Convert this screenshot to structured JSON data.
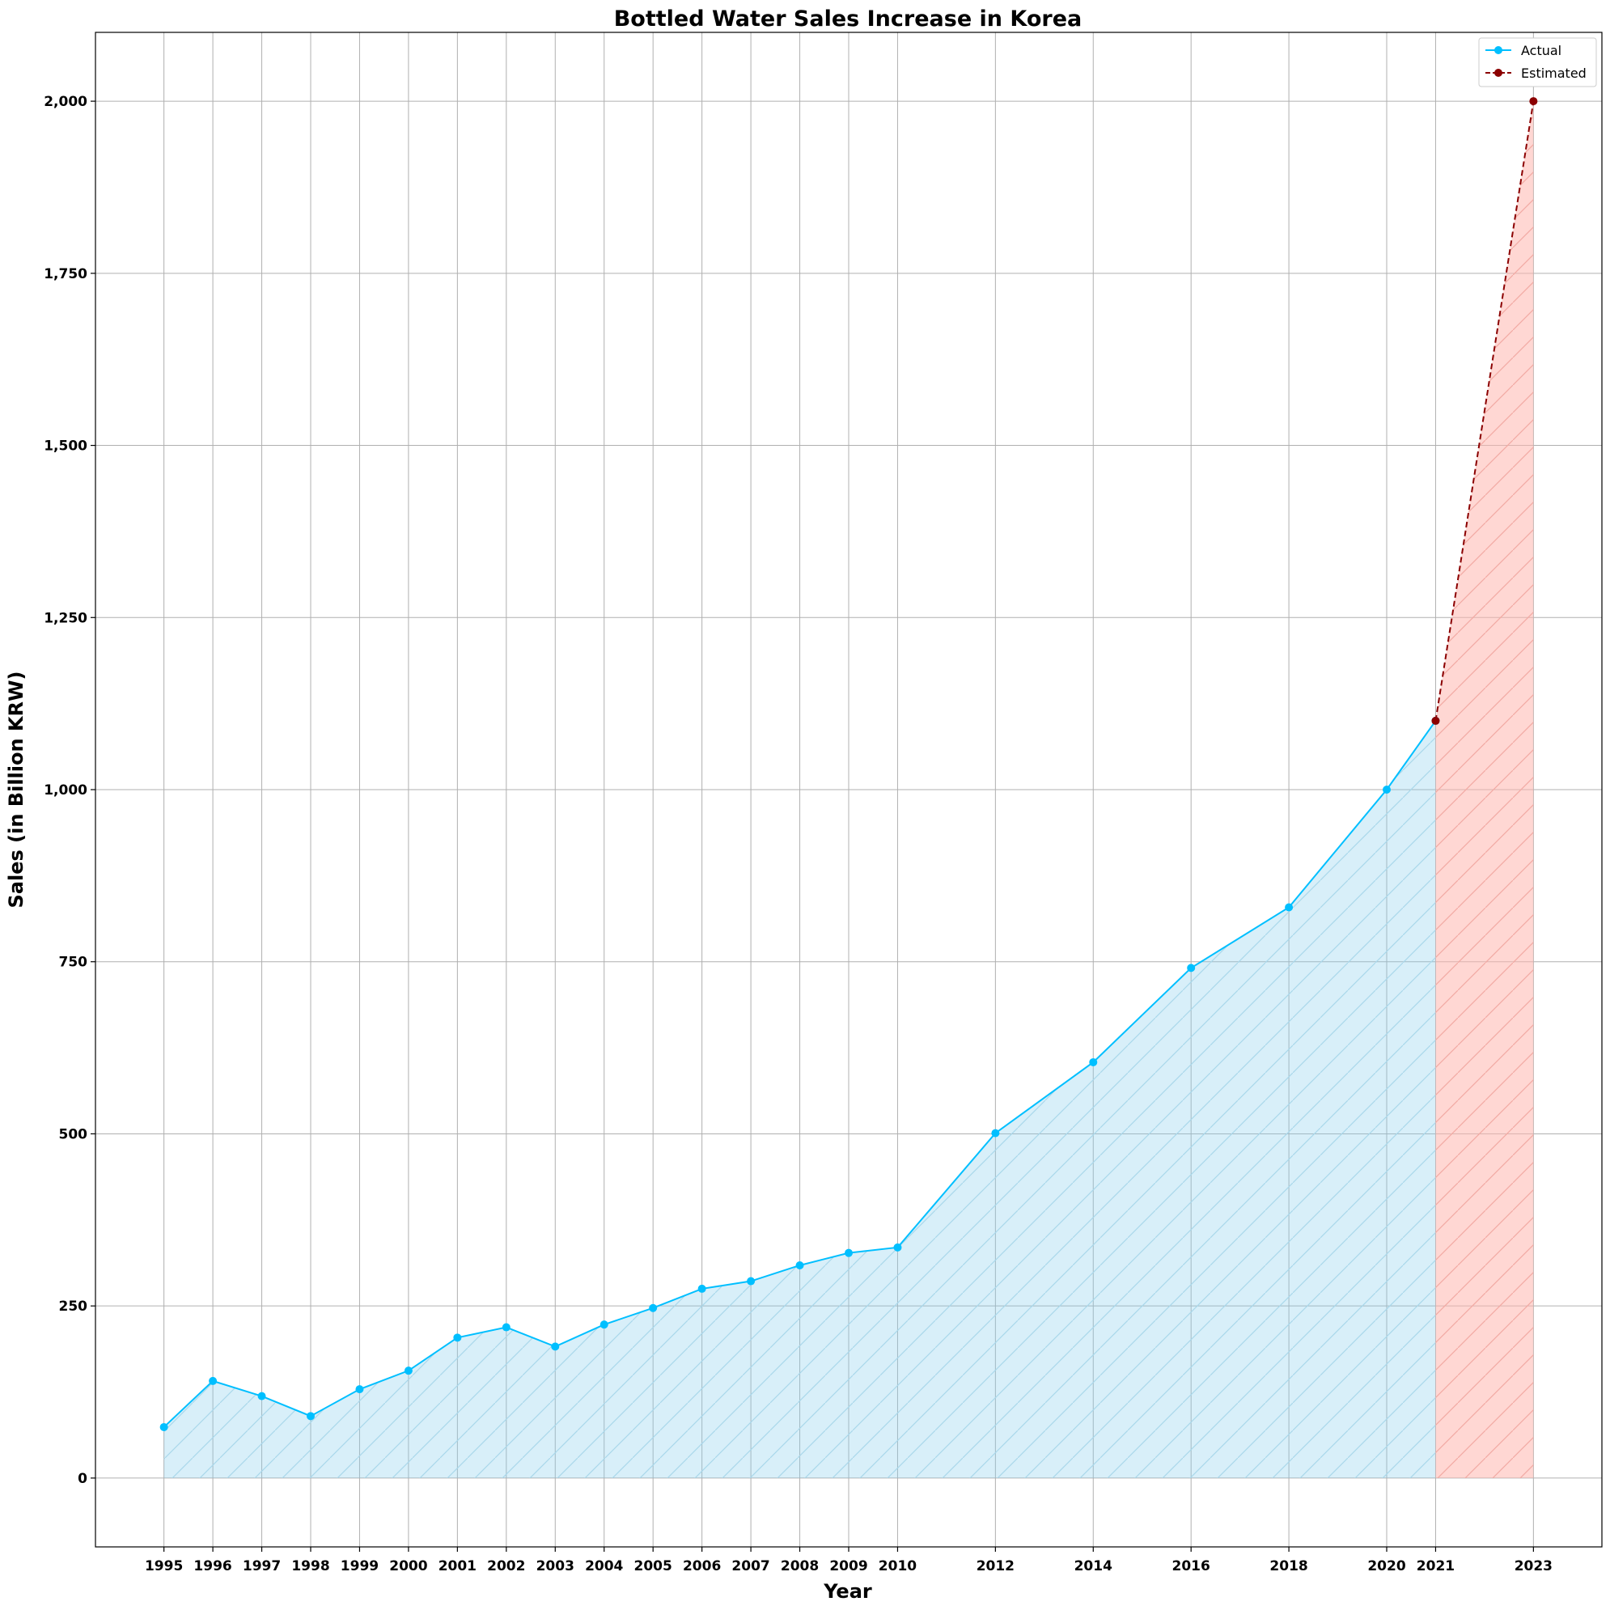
{
  "chart_data": {
    "type": "line",
    "title": "Bottled Water Sales Increase in Korea",
    "xlabel": "Year",
    "ylabel": "Sales (in Billion KRW)",
    "xlim": [
      1993.6,
      2024.4
    ],
    "ylim": [
      -100,
      2100
    ],
    "x_ticks": [
      1995,
      1996,
      1997,
      1998,
      1999,
      2000,
      2001,
      2002,
      2003,
      2004,
      2005,
      2006,
      2007,
      2008,
      2009,
      2010,
      2012,
      2014,
      2016,
      2018,
      2020,
      2021,
      2023
    ],
    "y_ticks": [
      0,
      250,
      500,
      750,
      1000,
      1250,
      1500,
      1750,
      2000
    ],
    "y_tick_labels": [
      "0",
      "250",
      "500",
      "750",
      "1,000",
      "1,250",
      "1,500",
      "1,750",
      "2,000"
    ],
    "grid": true,
    "legend_position": "top-right",
    "series": [
      {
        "name": "Actual",
        "color": "#00bfff",
        "fill_color": "#87ceeb",
        "line_style": "solid",
        "x": [
          1995,
          1996,
          1997,
          1998,
          1999,
          2000,
          2001,
          2002,
          2003,
          2004,
          2005,
          2006,
          2007,
          2008,
          2009,
          2010,
          2012,
          2014,
          2016,
          2018,
          2020,
          2021
        ],
        "values": [
          74,
          141,
          119,
          90,
          129,
          156,
          204,
          219,
          191,
          223,
          247,
          275,
          286,
          309,
          327,
          335,
          501,
          604,
          741,
          829,
          1000,
          1100
        ]
      },
      {
        "name": "Estimated",
        "color": "#8b0000",
        "fill_color": "#ffb6ae",
        "line_style": "dashed",
        "x": [
          2021,
          2023
        ],
        "values": [
          1100,
          2000
        ]
      }
    ]
  }
}
